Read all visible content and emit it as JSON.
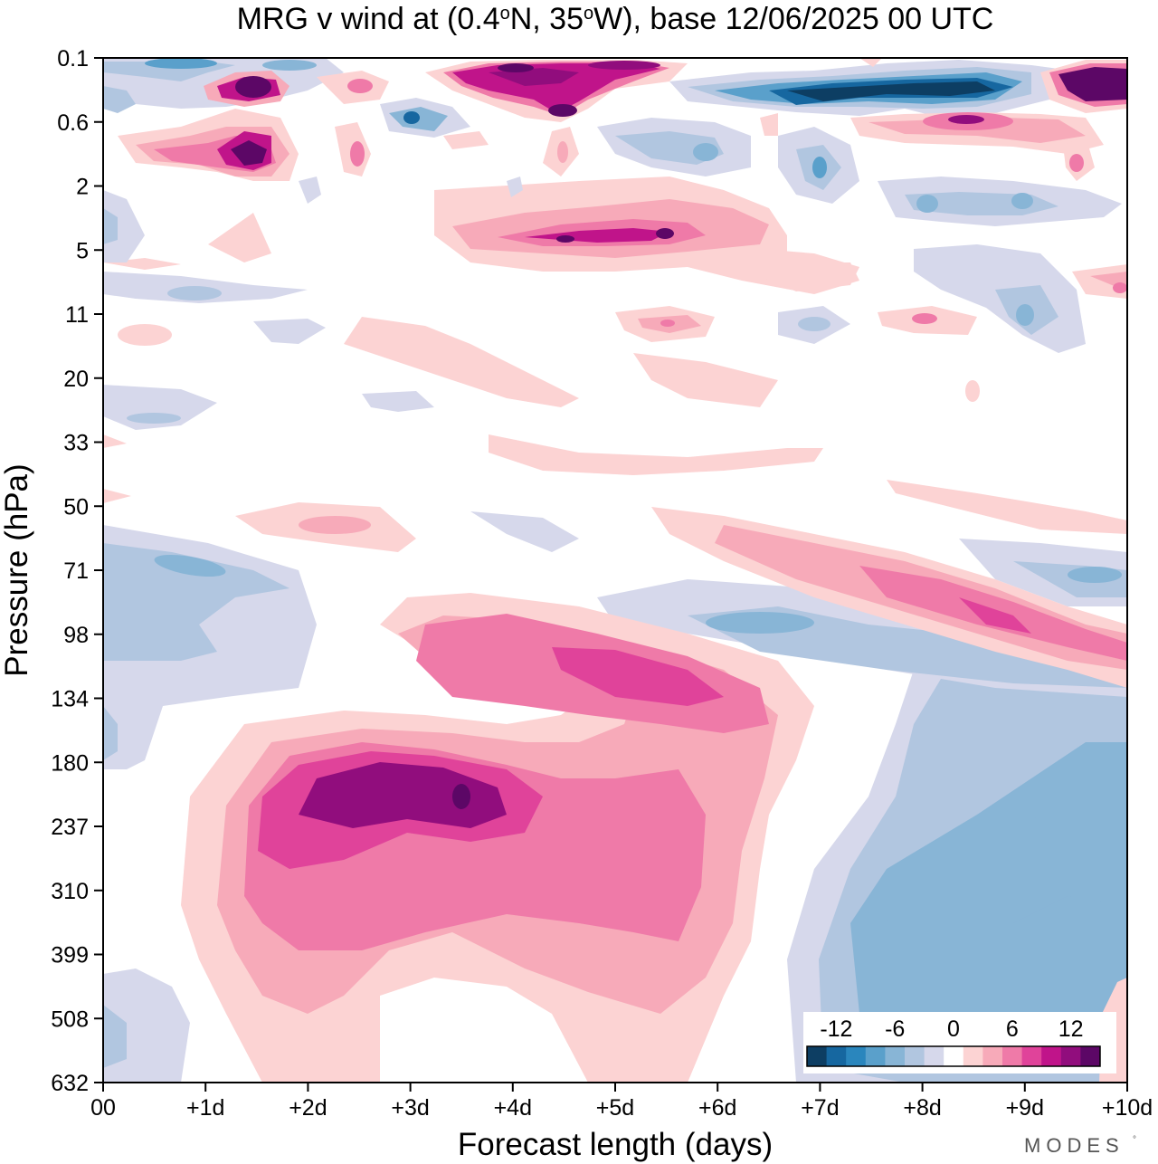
{
  "chart_data": {
    "type": "heatmap",
    "title": "MRG v wind at (0.4°N, 35°W),  base 12/06/2025  00 UTC",
    "title_parts": {
      "prefix": "MRG v wind at (0.4",
      "deg1": "o",
      "mid": "N, 35",
      "deg2": "o",
      "suffix": "W),  base 12/06/2025  00 UTC"
    },
    "xlabel": "Forecast length (days)",
    "ylabel": "Pressure (hPa)",
    "x_ticks": [
      "00",
      "+1d",
      "+2d",
      "+3d",
      "+4d",
      "+5d",
      "+6d",
      "+7d",
      "+8d",
      "+9d",
      "+10d"
    ],
    "xlim": [
      0,
      10
    ],
    "y_ticks": [
      "0.1",
      "0.6",
      "2",
      "5",
      "11",
      "20",
      "33",
      "50",
      "71",
      "98",
      "134",
      "180",
      "237",
      "310",
      "399",
      "508",
      "632"
    ],
    "y_scale": "log-pressure (top = 0.1 hPa, bottom = 632 hPa)",
    "brand": "MODES",
    "colorbar": {
      "tick_labels": [
        "-12",
        "-6",
        "0",
        "6",
        "12"
      ],
      "colors": [
        "#0d3e63",
        "#1667a0",
        "#2a86bd",
        "#5aa0cb",
        "#88b5d6",
        "#b1c6e0",
        "#d6d8eb",
        "#ffffff",
        "#fcd3d3",
        "#f7aab9",
        "#ef7aa8",
        "#e0439a",
        "#c0148a",
        "#910d7d",
        "#5c0766"
      ],
      "levels": [
        -14,
        -12,
        -10,
        -8,
        -6,
        -4,
        -2,
        0,
        2,
        4,
        6,
        8,
        10,
        12,
        14
      ]
    },
    "features": [
      {
        "name": "tropospheric positive maximum",
        "x_center_days": 3.2,
        "y_center_hPa": 220,
        "max_value": 14
      },
      {
        "name": "upper positive band",
        "x_center_days": 4.5,
        "y_center_hPa": 110,
        "max_value": 10
      },
      {
        "name": "descending positive band",
        "x_center_days": 8.5,
        "y_center_hPa": 90,
        "max_value": 10
      },
      {
        "name": "tropospheric negative region",
        "x_center_days": 8.5,
        "y_center_hPa": 350,
        "min_value": -8
      },
      {
        "name": "stratospheric positive band",
        "x_center_days": 4.5,
        "y_center_hPa": 5,
        "max_value": 12
      },
      {
        "name": "upper stratospheric negative maximum",
        "x_center_days": 8.0,
        "y_center_hPa": 0.3,
        "min_value": -14
      }
    ]
  }
}
